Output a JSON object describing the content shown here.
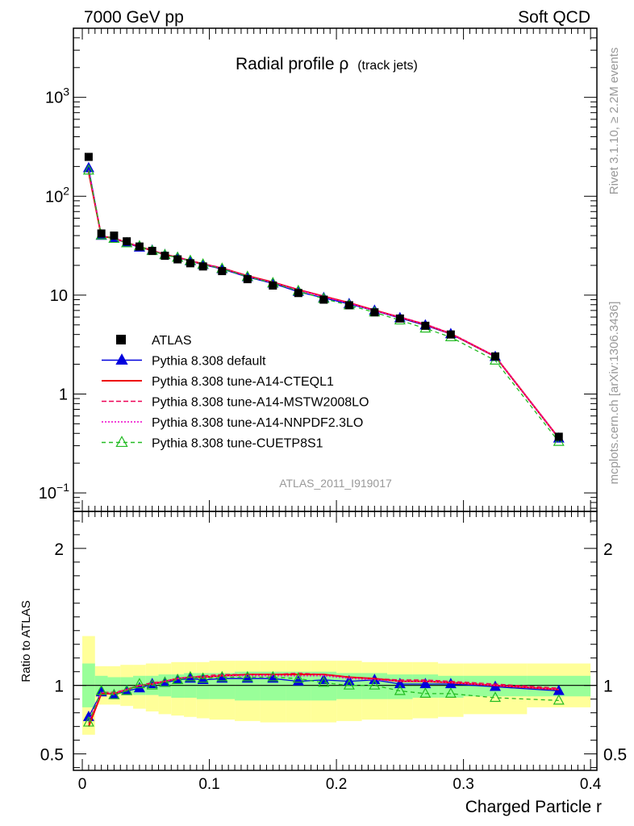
{
  "header": {
    "left": "7000 GeV pp",
    "right": "Soft QCD"
  },
  "side_text": {
    "rivet": "Rivet 3.1.10, ≥ 2.2M events",
    "mcplots": "mcplots.cern.ch [arXiv:1306.3436]"
  },
  "chart_data": {
    "type": "line",
    "title": "Radial profile ρ",
    "title_suffix": "(track jets)",
    "analysis_label": "ATLAS_2011_I919017",
    "xlabel": "Charged Particle r",
    "ylabel_ratio": "Ratio to ATLAS",
    "xlim": [
      -0.007,
      0.405
    ],
    "ylim_main": [
      0.065,
      5000
    ],
    "yscale_main": "log",
    "ylim_ratio": [
      0.38,
      2.27
    ],
    "x_ticks": [
      {
        "v": 0,
        "label": "0"
      },
      {
        "v": 0.1,
        "label": "0.1"
      },
      {
        "v": 0.2,
        "label": "0.2"
      },
      {
        "v": 0.3,
        "label": "0.3"
      },
      {
        "v": 0.4,
        "label": "0.4"
      }
    ],
    "y_ticks_main": [
      {
        "v": 0.1,
        "base": "10",
        "exp": "−1"
      },
      {
        "v": 1,
        "base": "1",
        "exp": ""
      },
      {
        "v": 10,
        "base": "10",
        "exp": ""
      },
      {
        "v": 100,
        "base": "10",
        "exp": "2"
      },
      {
        "v": 1000,
        "base": "10",
        "exp": "3"
      }
    ],
    "y_ticks_ratio": [
      {
        "v": 0.5,
        "label": "0.5"
      },
      {
        "v": 1,
        "label": "1"
      },
      {
        "v": 2,
        "label": "2"
      }
    ],
    "legend_position": "bottom-left",
    "x": [
      0.005,
      0.015,
      0.025,
      0.035,
      0.045,
      0.055,
      0.065,
      0.075,
      0.085,
      0.095,
      0.11,
      0.13,
      0.15,
      0.17,
      0.19,
      0.21,
      0.23,
      0.25,
      0.27,
      0.29,
      0.325,
      0.375
    ],
    "bin_edges": [
      0,
      0.01,
      0.02,
      0.03,
      0.04,
      0.05,
      0.06,
      0.07,
      0.08,
      0.09,
      0.1,
      0.12,
      0.14,
      0.16,
      0.18,
      0.2,
      0.22,
      0.24,
      0.26,
      0.28,
      0.3,
      0.35,
      0.4
    ],
    "band_stat": [
      [
        0.84,
        1.16
      ],
      [
        0.93,
        1.07
      ],
      [
        0.94,
        1.06
      ],
      [
        0.94,
        1.06
      ],
      [
        0.93,
        1.07
      ],
      [
        0.93,
        1.07
      ],
      [
        0.92,
        1.08
      ],
      [
        0.91,
        1.08
      ],
      [
        0.91,
        1.09
      ],
      [
        0.9,
        1.09
      ],
      [
        0.9,
        1.09
      ],
      [
        0.89,
        1.1
      ],
      [
        0.89,
        1.1
      ],
      [
        0.89,
        1.1
      ],
      [
        0.89,
        1.1
      ],
      [
        0.9,
        1.09
      ],
      [
        0.9,
        1.09
      ],
      [
        0.9,
        1.08
      ],
      [
        0.91,
        1.08
      ],
      [
        0.91,
        1.07
      ],
      [
        0.92,
        1.07
      ],
      [
        0.92,
        1.07
      ]
    ],
    "band_total": [
      [
        0.64,
        1.36
      ],
      [
        0.86,
        1.14
      ],
      [
        0.86,
        1.14
      ],
      [
        0.85,
        1.15
      ],
      [
        0.83,
        1.15
      ],
      [
        0.81,
        1.16
      ],
      [
        0.79,
        1.16
      ],
      [
        0.78,
        1.17
      ],
      [
        0.77,
        1.17
      ],
      [
        0.76,
        1.17
      ],
      [
        0.75,
        1.18
      ],
      [
        0.74,
        1.18
      ],
      [
        0.73,
        1.18
      ],
      [
        0.73,
        1.18
      ],
      [
        0.73,
        1.18
      ],
      [
        0.74,
        1.18
      ],
      [
        0.75,
        1.17
      ],
      [
        0.75,
        1.17
      ],
      [
        0.76,
        1.17
      ],
      [
        0.77,
        1.16
      ],
      [
        0.79,
        1.16
      ],
      [
        0.84,
        1.16
      ]
    ],
    "data": {
      "name": "ATLAS",
      "values": [
        250,
        42,
        40,
        35,
        31,
        28,
        25,
        23,
        21,
        19.5,
        17.5,
        14.5,
        12.5,
        10.5,
        9.0,
        7.9,
        6.7,
        5.8,
        4.9,
        4.0,
        2.4,
        0.37
      ]
    },
    "series": [
      {
        "name": "Pythia 8.308 default",
        "color": "#0000dd",
        "dash": "",
        "marker": "triangle-filled",
        "ratio": [
          0.77,
          0.95,
          0.93,
          0.96,
          0.98,
          1.01,
          1.02,
          1.04,
          1.05,
          1.04,
          1.05,
          1.05,
          1.05,
          1.03,
          1.04,
          1.03,
          1.04,
          1.01,
          1.01,
          1.01,
          0.99,
          0.96
        ]
      },
      {
        "name": "Pythia 8.308 tune-A14-CTEQL1",
        "color": "#ee0000",
        "dash": "",
        "marker": "none",
        "ratio": [
          0.7,
          0.94,
          0.94,
          0.97,
          1.0,
          1.01,
          1.03,
          1.05,
          1.06,
          1.06,
          1.07,
          1.08,
          1.08,
          1.08,
          1.08,
          1.06,
          1.05,
          1.03,
          1.03,
          1.02,
          1.0,
          0.97
        ]
      },
      {
        "name": "Pythia 8.308 tune-A14-MSTW2008LO",
        "color": "#ee0055",
        "dash": "6,3",
        "marker": "none",
        "ratio": [
          0.72,
          0.95,
          0.95,
          0.97,
          1.0,
          1.02,
          1.03,
          1.05,
          1.06,
          1.07,
          1.08,
          1.08,
          1.08,
          1.09,
          1.08,
          1.06,
          1.05,
          1.04,
          1.04,
          1.03,
          1.01,
          0.98
        ]
      },
      {
        "name": "Pythia 8.308 tune-A14-NNPDF2.3LO",
        "color": "#ee00cc",
        "dash": "2,2",
        "marker": "none",
        "ratio": [
          0.74,
          0.95,
          0.94,
          0.97,
          1.0,
          1.01,
          1.03,
          1.05,
          1.06,
          1.06,
          1.07,
          1.07,
          1.07,
          1.07,
          1.07,
          1.05,
          1.04,
          1.03,
          1.03,
          1.02,
          1.0,
          0.97
        ]
      },
      {
        "name": "Pythia 8.308 tune-CUETP8S1",
        "color": "#22bb22",
        "dash": "5,4",
        "marker": "triangle-open",
        "ratio": [
          0.73,
          0.96,
          0.93,
          0.96,
          1.01,
          1.0,
          1.02,
          1.04,
          1.06,
          1.05,
          1.06,
          1.06,
          1.06,
          1.05,
          1.02,
          1.0,
          1.0,
          0.96,
          0.94,
          0.94,
          0.91,
          0.89
        ]
      }
    ]
  }
}
